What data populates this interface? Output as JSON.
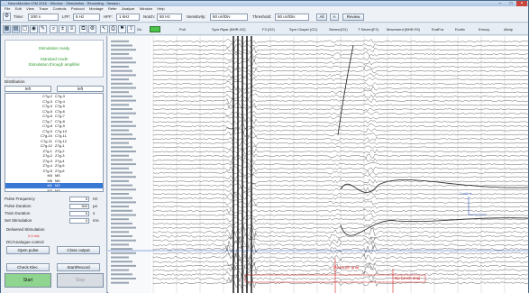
{
  "window": {
    "title": "NeuroMonitor IOM 2016 · Window · Stimulation · Recording · Session"
  },
  "menu": [
    "File",
    "Edit",
    "View",
    "Trace",
    "Controls",
    "Protocol",
    "Montage",
    "Refer",
    "Analyze",
    "Window",
    "Help"
  ],
  "toolbar": {
    "timebase_label": "Time:",
    "timebase_value": "200 s",
    "lff_label": "LFF:",
    "lff_value": "5 Hz",
    "hff_label": "HFF:",
    "hff_value": "1 kHz",
    "notch_label": "Notch:",
    "notch_value": "50 Hz",
    "sensitivity_label": "Sensitivity:",
    "sensitivity_value": "50 uV/Div",
    "threshold_label": "Threshold:",
    "threshold_value": "50 uV/Div",
    "btn_all": "All",
    "btn_amp": "A",
    "btn_review": "Review"
  },
  "toolbar2": {
    "channel_headers": [
      "Pull",
      "Sym Ripar (BHR-G2)",
      "F3 (G2)",
      "Sym Chapel (G2)",
      "Siemor(G2)",
      "T Seizen(F2)",
      "Movement (BHR-F6)",
      "EndFra",
      "Ecofix",
      "Emcoy",
      "Allotp"
    ],
    "on_off": "On"
  },
  "left": {
    "stim_title": "Stimulation ready",
    "stim_line1": "Standard mode",
    "stim_line2": "Stimulation through amplifier",
    "distribution_label": "Distribution",
    "combo_left": "left",
    "combo_right": "left",
    "pairs": [
      {
        "a": "C7g-2",
        "b": "C7g-3"
      },
      {
        "a": "C7g-3",
        "b": "C7g-4"
      },
      {
        "a": "C7g-4",
        "b": "C7g-5"
      },
      {
        "a": "C7g-5",
        "b": "C7g-6"
      },
      {
        "a": "C7g-6",
        "b": "C7g-7"
      },
      {
        "a": "C7g-7",
        "b": "C7g-8"
      },
      {
        "a": "C7g-8",
        "b": "C7g-9"
      },
      {
        "a": "C7g-9",
        "b": "C7g-10"
      },
      {
        "a": "C7g-10",
        "b": "C7g-11"
      },
      {
        "a": "C7g-11",
        "b": "C7g-12"
      },
      {
        "a": "C7g-12",
        "b": "Z7g-1"
      },
      {
        "a": "Z7g-1",
        "b": "Z7g-2"
      },
      {
        "a": "Z7g-2",
        "b": "Z7g-3"
      },
      {
        "a": "Z7g-3",
        "b": "Z7g-4"
      },
      {
        "a": "Z7g-4",
        "b": "Z7g-5"
      },
      {
        "a": "Z7g-5",
        "b": "Z7g-6"
      },
      {
        "a": "M4",
        "b": "M5"
      },
      {
        "a": "M5",
        "b": "M6"
      },
      {
        "a": "M1",
        "b": "M2"
      },
      {
        "a": "M2",
        "b": "M3"
      },
      {
        "a": "M7",
        "b": "M8"
      },
      {
        "a": "M8",
        "b": "M9"
      }
    ],
    "selected_index": 18,
    "params": [
      {
        "label": "Pulse Frequency",
        "value": "5",
        "unit": "Hz"
      },
      {
        "label": "Pulse Duration",
        "value": "300",
        "unit": "µs"
      },
      {
        "label": "Train Duration",
        "value": "5",
        "unit": "s"
      },
      {
        "label": "Set Stimulation",
        "value": "0",
        "unit": "mA"
      }
    ],
    "delivered_label": "Delivered Stimulation",
    "delivered_value": "0.0 mA",
    "section_label": "DC/Analogue control",
    "btn_open_pulse": "Open pulse",
    "btn_close_pulse": "Close output",
    "btn_check_elec": "Check Elec.",
    "btn_start_record": "Start/Record",
    "btn_start": "Start",
    "btn_stop": "Stop"
  },
  "plot": {
    "annotations": [
      "De-brush anal",
      "De-brush anal"
    ],
    "scale_label": "1 mV, s",
    "colors": {
      "trace": "#222222",
      "annotation": "#d21f1f",
      "marker": "#2a55c8",
      "grid": "#c5ccd6"
    }
  }
}
